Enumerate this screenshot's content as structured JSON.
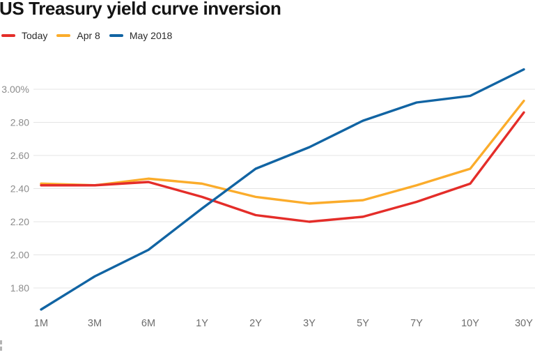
{
  "title": "US Treasury yield curve inversion",
  "chart_data": {
    "type": "line",
    "title": "US Treasury yield curve inversion",
    "categories": [
      "1M",
      "3M",
      "6M",
      "1Y",
      "2Y",
      "3Y",
      "5Y",
      "7Y",
      "10Y",
      "30Y"
    ],
    "xlabel": "",
    "ylabel": "",
    "ylim": [
      1.62,
      3.16
    ],
    "grid": "horizontal",
    "legend_position": "top-left",
    "y_ticks": [
      {
        "label": "3.00%",
        "value": 3.0
      },
      {
        "label": "2.80",
        "value": 2.8
      },
      {
        "label": "2.60",
        "value": 2.6
      },
      {
        "label": "2.40",
        "value": 2.4
      },
      {
        "label": "2.20",
        "value": 2.2
      },
      {
        "label": "2.00",
        "value": 2.0
      },
      {
        "label": "1.80",
        "value": 1.8
      }
    ],
    "series": [
      {
        "name": "Today",
        "color": "#e42d29",
        "values": [
          2.42,
          2.42,
          2.44,
          2.35,
          2.24,
          2.2,
          2.23,
          2.32,
          2.43,
          2.86
        ]
      },
      {
        "name": "Apr 8",
        "color": "#fbac2b",
        "values": [
          2.43,
          2.42,
          2.46,
          2.43,
          2.35,
          2.31,
          2.33,
          2.42,
          2.52,
          2.93
        ]
      },
      {
        "name": "May 2018",
        "color": "#1164a3",
        "values": [
          1.67,
          1.87,
          2.03,
          2.28,
          2.52,
          2.65,
          2.81,
          2.92,
          2.96,
          3.12
        ]
      }
    ]
  },
  "colors": {
    "background": "#ffffff",
    "title_text": "#141414",
    "gridline": "#e4e4e4",
    "y_axis_text": "#8c8c8c",
    "x_axis_text": "#6d6d6d",
    "legend_text": "#2b2b2b"
  }
}
